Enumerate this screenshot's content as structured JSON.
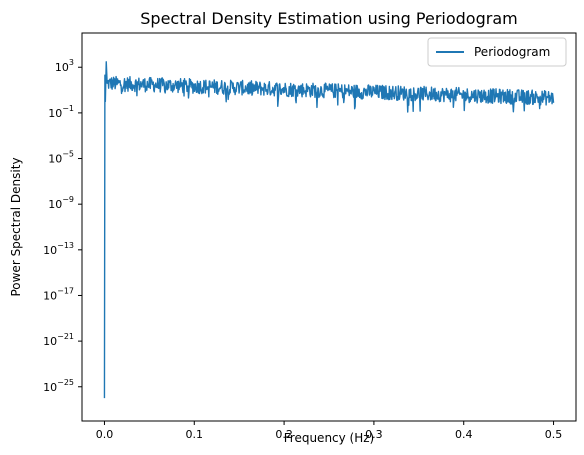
{
  "chart_data": {
    "type": "line",
    "title": "Spectral Density Estimation using Periodogram",
    "xlabel": "Frequency (Hz)",
    "ylabel": "Power Spectral Density",
    "xlim": [
      -0.025,
      0.525
    ],
    "ylim_log10": [
      -28,
      6
    ],
    "y_scale": "log",
    "x_ticks": [
      0.0,
      0.1,
      0.2,
      0.3,
      0.4,
      0.5
    ],
    "x_tick_labels": [
      "0.0",
      "0.1",
      "0.2",
      "0.3",
      "0.4",
      "0.5"
    ],
    "y_tick_exponents": [
      -25,
      -21,
      -17,
      -13,
      -9,
      -5,
      -1,
      3
    ],
    "grid": false,
    "legend_position": "top-right",
    "series": [
      {
        "name": "Periodogram",
        "color": "#1f77b4",
        "x": [
          0.0,
          0.0005,
          0.001,
          0.0015,
          0.002,
          0.003,
          0.01,
          0.05,
          0.1,
          0.15,
          0.2,
          0.25,
          0.3,
          0.35,
          0.4,
          0.45,
          0.5
        ],
        "y": [
          1e-26,
          200,
          1.0,
          60,
          3000,
          40,
          25,
          20,
          18,
          15,
          14,
          12,
          10,
          8,
          6,
          5,
          4
        ],
        "note_band": "dense noise roughly between 1e-1 and 1e2 across 0.003–0.5 Hz"
      }
    ]
  }
}
